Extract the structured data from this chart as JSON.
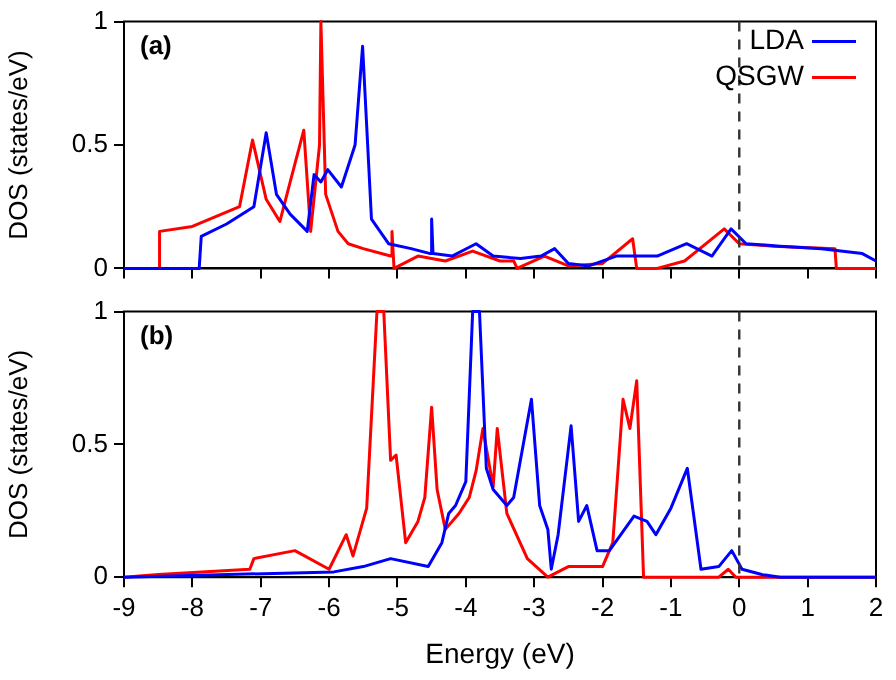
{
  "chart_data": [
    {
      "type": "line",
      "ylabel": "DOS (states/eV)",
      "annotations": [
        "(a)"
      ],
      "xlim": [
        -9,
        2
      ],
      "xticks": [
        -9,
        -8,
        -7,
        -6,
        -5,
        -4,
        -3,
        -2,
        -1,
        0,
        1,
        2
      ],
      "ylim": [
        0,
        1
      ],
      "yticks": [
        0,
        0.5,
        1
      ],
      "tick_labels": "y",
      "grid": false,
      "legend": "top right",
      "marker": "none",
      "line_style": "solid",
      "ref_lines": [
        {
          "axis": "x",
          "value": 0,
          "color": "#333333",
          "line_style": "dashed"
        }
      ],
      "series": [
        {
          "name": "LDA",
          "color": "#0000ff",
          "x": [
            -9,
            -7.9,
            -7.87,
            -7.5,
            -7.1,
            -6.92,
            -6.77,
            -6.57,
            -6.32,
            -6.22,
            -6.12,
            -6.02,
            -5.82,
            -5.62,
            -5.51,
            -5.38,
            -5.13,
            -4.8,
            -4.52,
            -4.5,
            -4.48,
            -4.2,
            -3.85,
            -3.6,
            -3.2,
            -2.9,
            -2.7,
            -2.5,
            -2.2,
            -1.8,
            -1.2,
            -0.77,
            -0.4,
            -0.12,
            0.1,
            0.6,
            1.2,
            1.8,
            2
          ],
          "values": [
            0,
            0,
            0.13,
            0.18,
            0.25,
            0.55,
            0.3,
            0.22,
            0.15,
            0.38,
            0.35,
            0.4,
            0.33,
            0.5,
            0.9,
            0.2,
            0.1,
            0.08,
            0.06,
            0.2,
            0.06,
            0.05,
            0.1,
            0.05,
            0.04,
            0.05,
            0.08,
            0.02,
            0.01,
            0.05,
            0.05,
            0.1,
            0.05,
            0.16,
            0.1,
            0.09,
            0.08,
            0.06,
            0.03
          ]
        },
        {
          "name": "QSGW",
          "color": "#ff0000",
          "x": [
            -9,
            -8.5,
            -8.48,
            -8,
            -7.31,
            -7.12,
            -6.92,
            -6.72,
            -6.57,
            -6.37,
            -6.27,
            -6.14,
            -6.12,
            -6.05,
            -5.87,
            -5.72,
            -5.5,
            -5.1,
            -5.08,
            -5.05,
            -4.7,
            -4.3,
            -3.9,
            -3.5,
            -3.3,
            -3.25,
            -2.85,
            -2.5,
            -2,
            -1.56,
            -1.5,
            -1.2,
            -0.8,
            -0.22,
            0,
            0.5,
            1.4,
            1.42,
            2
          ],
          "values": [
            0,
            0,
            0.15,
            0.17,
            0.25,
            0.52,
            0.28,
            0.19,
            0.35,
            0.56,
            0.15,
            0.5,
            1,
            0.3,
            0.15,
            0.1,
            0.08,
            0.05,
            0.15,
            0,
            0.05,
            0.03,
            0.07,
            0.03,
            0.03,
            0,
            0.05,
            0.01,
            0.02,
            0.12,
            0,
            0,
            0.03,
            0.16,
            0.1,
            0.09,
            0.08,
            0,
            0
          ]
        }
      ]
    },
    {
      "type": "line",
      "ylabel": "DOS (states/eV)",
      "xlabel": "Energy (eV)",
      "annotations": [
        "(b)"
      ],
      "xlim": [
        -9,
        2
      ],
      "xticks": [
        -9,
        -8,
        -7,
        -6,
        -5,
        -4,
        -3,
        -2,
        -1,
        0,
        1,
        2
      ],
      "ylim": [
        0,
        1
      ],
      "yticks": [
        0,
        0.5,
        1
      ],
      "grid": false,
      "marker": "none",
      "line_style": "solid",
      "ref_lines": [
        {
          "axis": "x",
          "value": 0,
          "color": "#333333",
          "line_style": "dashed"
        }
      ],
      "series": [
        {
          "color": "#0000ff",
          "x": [
            -9,
            -5.93,
            -5.5,
            -5.1,
            -4.55,
            -4.35,
            -4.25,
            -4.15,
            -4.0,
            -3.9,
            -3.8,
            -3.7,
            -3.6,
            -3.4,
            -3.3,
            -3.04,
            -2.92,
            -2.8,
            -2.75,
            -2.65,
            -2.46,
            -2.35,
            -2.23,
            -2.08,
            -1.9,
            -1.54,
            -1.35,
            -1.22,
            -1.0,
            -0.76,
            -0.56,
            -0.3,
            -0.11,
            0.04,
            0.33,
            0.6,
            2
          ],
          "values": [
            0,
            0.02,
            0.04,
            0.07,
            0.04,
            0.13,
            0.24,
            0.27,
            0.36,
            1,
            1,
            0.41,
            0.33,
            0.27,
            0.3,
            0.67,
            0.27,
            0.18,
            0.03,
            0.16,
            0.57,
            0.21,
            0.27,
            0.1,
            0.1,
            0.23,
            0.21,
            0.16,
            0.26,
            0.41,
            0.03,
            0.04,
            0.1,
            0.03,
            0.01,
            0,
            0
          ]
        },
        {
          "color": "#ff0000",
          "x": [
            -9,
            -8.5,
            -7.16,
            -7.1,
            -6.5,
            -6.0,
            -5.75,
            -5.65,
            -5.45,
            -5.3,
            -5.2,
            -5.1,
            -5.02,
            -4.88,
            -4.7,
            -4.6,
            -4.5,
            -4.42,
            -4.3,
            -4.1,
            -3.95,
            -3.85,
            -3.75,
            -3.6,
            -3.54,
            -3.4,
            -3.1,
            -2.8,
            -2.5,
            -2.0,
            -1.85,
            -1.7,
            -1.6,
            -1.5,
            -1.4,
            -0.3,
            -0.16,
            -0.05,
            2
          ],
          "values": [
            0,
            0.01,
            0.03,
            0.07,
            0.1,
            0.03,
            0.16,
            0.08,
            0.26,
            1,
            1,
            0.44,
            0.46,
            0.13,
            0.21,
            0.3,
            0.64,
            0.33,
            0.18,
            0.24,
            0.3,
            0.4,
            0.56,
            0.34,
            0.56,
            0.24,
            0.07,
            0,
            0.04,
            0.04,
            0.13,
            0.67,
            0.56,
            0.74,
            0,
            0,
            0.03,
            0,
            0
          ]
        }
      ]
    }
  ]
}
